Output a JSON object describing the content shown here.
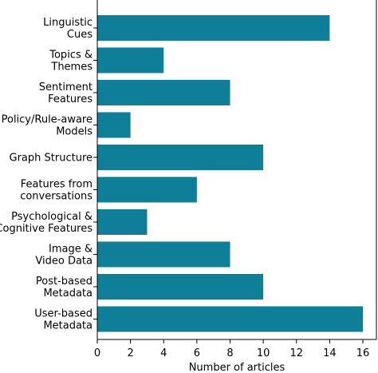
{
  "chart_data": {
    "type": "bar",
    "orientation": "horizontal",
    "categories": [
      [
        "Linguistic",
        "Cues"
      ],
      [
        "Topics &",
        "Themes"
      ],
      [
        "Sentiment",
        "Features"
      ],
      [
        "Policy/Rule-aware",
        "Models"
      ],
      [
        "Graph Structure"
      ],
      [
        "Features from",
        "conversations"
      ],
      [
        "Psychological &",
        "Cognitive Features"
      ],
      [
        "Image &",
        "Video Data"
      ],
      [
        "Post-based",
        "Metadata"
      ],
      [
        "User-based",
        "Metadata"
      ]
    ],
    "values": [
      14,
      4,
      8,
      2,
      10,
      6,
      3,
      8,
      10,
      16
    ],
    "xlabel": "Number of articles",
    "ylabel": "",
    "title": "",
    "xlim": [
      0,
      16
    ],
    "xticks": [
      0,
      2,
      4,
      6,
      8,
      10,
      12,
      14,
      16
    ],
    "bar_color": "#0f7f99",
    "grid": false,
    "legend": "none"
  }
}
